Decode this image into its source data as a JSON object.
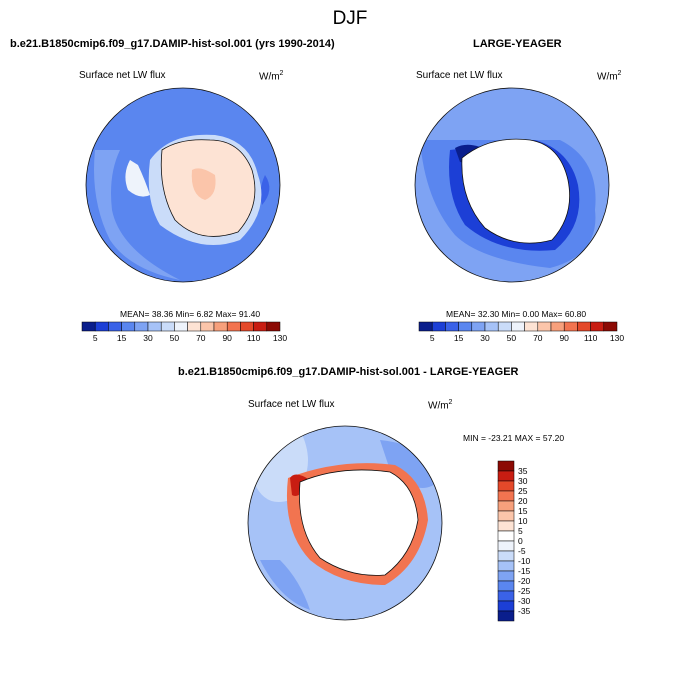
{
  "title": "DJF",
  "panels": {
    "left": {
      "case_title": "b.e21.B1850cmip6.f09_g17.DAMIP-hist-sol.001 (yrs 1990-2014)",
      "variable": "Surface net LW flux",
      "units_base": "W/m",
      "units_exp": "2",
      "stats": "MEAN=  38.36  Min=   6.82  Max=  91.40"
    },
    "right": {
      "case_title": "LARGE-YEAGER",
      "variable": "Surface net LW flux",
      "units_base": "W/m",
      "units_exp": "2",
      "stats": "MEAN=  32.30  Min=   0.00  Max=  60.80"
    },
    "diff": {
      "case_title": "b.e21.B1850cmip6.f09_g17.DAMIP-hist-sol.001 - LARGE-YEAGER",
      "variable": "Surface net LW flux",
      "units_base": "W/m",
      "units_exp": "2",
      "stats": "MIN = -23.21 MAX =  57.20"
    }
  },
  "chart_data": [
    {
      "type": "heatmap",
      "projection": "south-polar-stereographic",
      "title": "Surface net LW flux",
      "units": "W/m^2",
      "mean": 38.36,
      "min": 6.82,
      "max": 91.4,
      "colorbar": {
        "orientation": "horizontal",
        "levels": [
          5,
          10,
          15,
          20,
          30,
          40,
          50,
          60,
          70,
          80,
          90,
          100,
          110,
          120,
          130
        ],
        "tick_labels": [
          "5",
          "15",
          "30",
          "50",
          "70",
          "90",
          "110",
          "130"
        ],
        "colors": [
          "#0a1e8c",
          "#1c3fd6",
          "#3a62e8",
          "#5a86ef",
          "#7ea3f3",
          "#a6c2f7",
          "#cadcf9",
          "#eef3fb",
          "#fde3d4",
          "#fbc5aa",
          "#f7a07c",
          "#f27450",
          "#e4492a",
          "#c81d12",
          "#8c0a04"
        ]
      }
    },
    {
      "type": "heatmap",
      "projection": "south-polar-stereographic",
      "title": "Surface net LW flux",
      "units": "W/m^2",
      "mean": 32.3,
      "min": 0.0,
      "max": 60.8,
      "colorbar": {
        "orientation": "horizontal",
        "levels": [
          5,
          10,
          15,
          20,
          30,
          40,
          50,
          60,
          70,
          80,
          90,
          100,
          110,
          120,
          130
        ],
        "tick_labels": [
          "5",
          "15",
          "30",
          "50",
          "70",
          "90",
          "110",
          "130"
        ],
        "colors": [
          "#0a1e8c",
          "#1c3fd6",
          "#3a62e8",
          "#5a86ef",
          "#7ea3f3",
          "#a6c2f7",
          "#cadcf9",
          "#eef3fb",
          "#fde3d4",
          "#fbc5aa",
          "#f7a07c",
          "#f27450",
          "#e4492a",
          "#c81d12",
          "#8c0a04"
        ]
      }
    },
    {
      "type": "heatmap",
      "projection": "south-polar-stereographic",
      "title": "Surface net LW flux",
      "units": "W/m^2",
      "min": -23.21,
      "max": 57.2,
      "colorbar": {
        "orientation": "vertical",
        "tick_labels": [
          "35",
          "30",
          "25",
          "20",
          "15",
          "10",
          "5",
          "0",
          "-5",
          "-10",
          "-15",
          "-20",
          "-25",
          "-30",
          "-35"
        ],
        "colors": [
          "#8c0a04",
          "#c81d12",
          "#e4492a",
          "#f27450",
          "#f7a07c",
          "#fbc5aa",
          "#fde3d4",
          "#ffffff",
          "#eef3fb",
          "#cadcf9",
          "#a6c2f7",
          "#7ea3f3",
          "#5a86ef",
          "#3a62e8",
          "#1c3fd6",
          "#0a1e8c"
        ]
      }
    }
  ]
}
